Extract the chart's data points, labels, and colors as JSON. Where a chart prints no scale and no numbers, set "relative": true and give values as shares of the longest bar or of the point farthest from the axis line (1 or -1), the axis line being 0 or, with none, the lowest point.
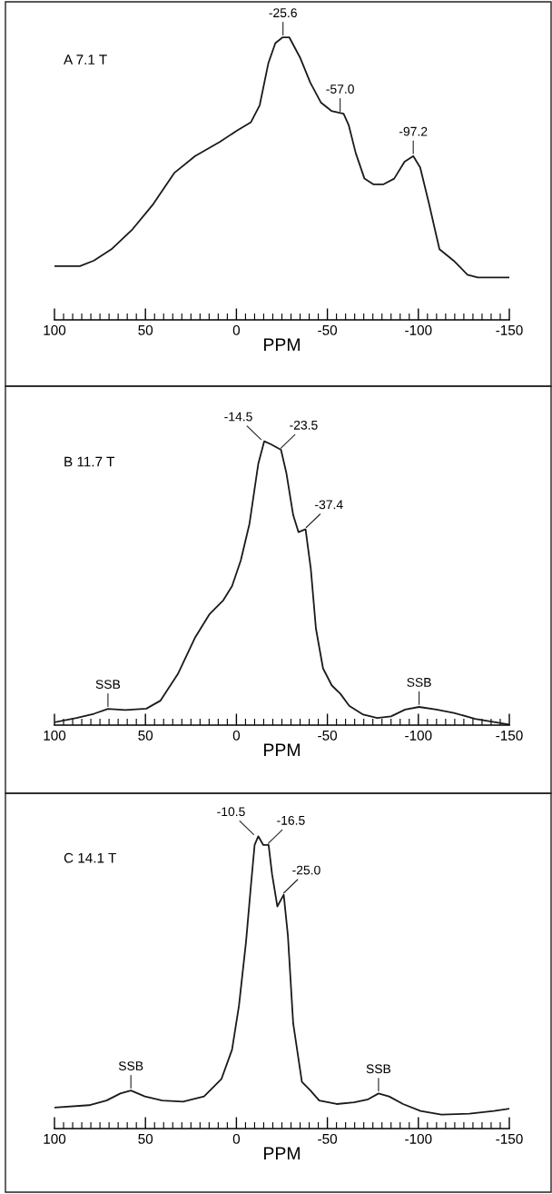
{
  "chart_data": [
    {
      "type": "line",
      "title": "A 7.1 T",
      "xlabel": "PPM",
      "relative": true,
      "grid": false,
      "legend": false,
      "marker": "none",
      "line_style": "solid",
      "xlim": [
        100,
        -150
      ],
      "xticks": [
        100,
        50,
        0,
        -50,
        -100,
        -150
      ],
      "series": [
        {
          "color": "#1a1a1a",
          "x": [
            100,
            86,
            78.3,
            68.7,
            57.2,
            45.7,
            34.2,
            22.7,
            9.2,
            -0.3,
            -8,
            -12.8,
            -17.6,
            -21.4,
            -25.3,
            -29.1,
            -34.9,
            -40.6,
            -46.4,
            -52.2,
            -58.9,
            -61.7,
            -65.6,
            -70.4,
            -75.2,
            -80.9,
            -86.7,
            -92.4,
            -97.2,
            -101,
            -105.9,
            -111.6,
            -119.3,
            -127,
            -132.7,
            -150
          ],
          "values": [
            0.19,
            0.19,
            0.21,
            0.25,
            0.32,
            0.41,
            0.52,
            0.58,
            0.63,
            0.67,
            0.7,
            0.76,
            0.91,
            0.98,
            1.0,
            1.0,
            0.93,
            0.84,
            0.77,
            0.74,
            0.73,
            0.69,
            0.59,
            0.5,
            0.48,
            0.48,
            0.5,
            0.56,
            0.58,
            0.54,
            0.41,
            0.25,
            0.21,
            0.16,
            0.15,
            0.15
          ]
        }
      ],
      "annotations": [
        {
          "text": "-25.6",
          "x": -25.6,
          "y": 1.0
        },
        {
          "text": "-57.0",
          "x": -57.0,
          "y": 0.73
        },
        {
          "text": "-97.2",
          "x": -97.2,
          "y": 0.58
        }
      ]
    },
    {
      "type": "line",
      "title": "B 11.7 T",
      "xlabel": "PPM",
      "relative": true,
      "grid": false,
      "legend": false,
      "marker": "none",
      "line_style": "solid",
      "xlim": [
        100,
        -150
      ],
      "xticks": [
        100,
        50,
        0,
        -50,
        -100,
        -150
      ],
      "series": [
        {
          "color": "#1a1a1a",
          "x": [
            100,
            87.9,
            78.3,
            70.6,
            61,
            49.5,
            41.8,
            32.2,
            22.6,
            14.9,
            7.2,
            2.4,
            -2.4,
            -7.2,
            -12,
            -15.3,
            -18.8,
            -24.5,
            -27.4,
            -31.2,
            -34.1,
            -38,
            -40.9,
            -43.7,
            -47.6,
            -52.4,
            -57.2,
            -62,
            -69.7,
            -77.4,
            -85,
            -92.7,
            -100.4,
            -110,
            -119.6,
            -131.2,
            -150
          ],
          "values": [
            0.01,
            0.025,
            0.04,
            0.057,
            0.053,
            0.058,
            0.086,
            0.18,
            0.31,
            0.39,
            0.44,
            0.49,
            0.58,
            0.71,
            0.92,
            1.0,
            0.99,
            0.97,
            0.89,
            0.74,
            0.68,
            0.69,
            0.55,
            0.34,
            0.2,
            0.14,
            0.11,
            0.068,
            0.037,
            0.025,
            0.031,
            0.055,
            0.064,
            0.055,
            0.043,
            0.022,
            0.002
          ]
        }
      ],
      "annotations": [
        {
          "text": "-14.5",
          "x": -14.5,
          "y": 1.0
        },
        {
          "text": "-23.5",
          "x": -23.5,
          "y": 0.97
        },
        {
          "text": "-37.4",
          "x": -37.4,
          "y": 0.69
        },
        {
          "text": "SSB",
          "x": 70.6,
          "y": 0.057
        },
        {
          "text": "SSB",
          "x": -100.4,
          "y": 0.064
        }
      ]
    },
    {
      "type": "line",
      "title": "C 14.1 T",
      "xlabel": "PPM",
      "relative": true,
      "grid": false,
      "legend": false,
      "marker": "none",
      "line_style": "solid",
      "xlim": [
        100,
        -150
      ],
      "xticks": [
        100,
        50,
        0,
        -50,
        -100,
        -150
      ],
      "series": [
        {
          "color": "#1a1a1a",
          "x": [
            100,
            81,
            71.4,
            63.8,
            58,
            50.3,
            40.8,
            29.3,
            17.8,
            8.2,
            2.4,
            -1.4,
            -5.3,
            -8.1,
            -10,
            -12,
            -14.8,
            -17.7,
            -19.6,
            -22.5,
            -26,
            -28.3,
            -31.2,
            -36,
            -40.7,
            -45.5,
            -55.1,
            -64.7,
            -72.4,
            -78.1,
            -83.9,
            -91.6,
            -101.2,
            -112.7,
            -128,
            -141.5,
            -150
          ],
          "values": [
            0.072,
            0.08,
            0.096,
            0.12,
            0.13,
            0.11,
            0.096,
            0.092,
            0.11,
            0.17,
            0.27,
            0.42,
            0.64,
            0.84,
            0.97,
            1.0,
            0.97,
            0.97,
            0.87,
            0.76,
            0.8,
            0.66,
            0.36,
            0.16,
            0.13,
            0.096,
            0.084,
            0.09,
            0.1,
            0.12,
            0.11,
            0.084,
            0.06,
            0.048,
            0.051,
            0.06,
            0.068
          ]
        }
      ],
      "annotations": [
        {
          "text": "-10.5",
          "x": -10.5,
          "y": 1.0
        },
        {
          "text": "-16.5",
          "x": -16.5,
          "y": 0.97
        },
        {
          "text": "-25.0",
          "x": -25.0,
          "y": 0.8
        },
        {
          "text": "SSB",
          "x": 58,
          "y": 0.13
        },
        {
          "text": "SSB",
          "x": -78.1,
          "y": 0.12
        }
      ]
    }
  ]
}
